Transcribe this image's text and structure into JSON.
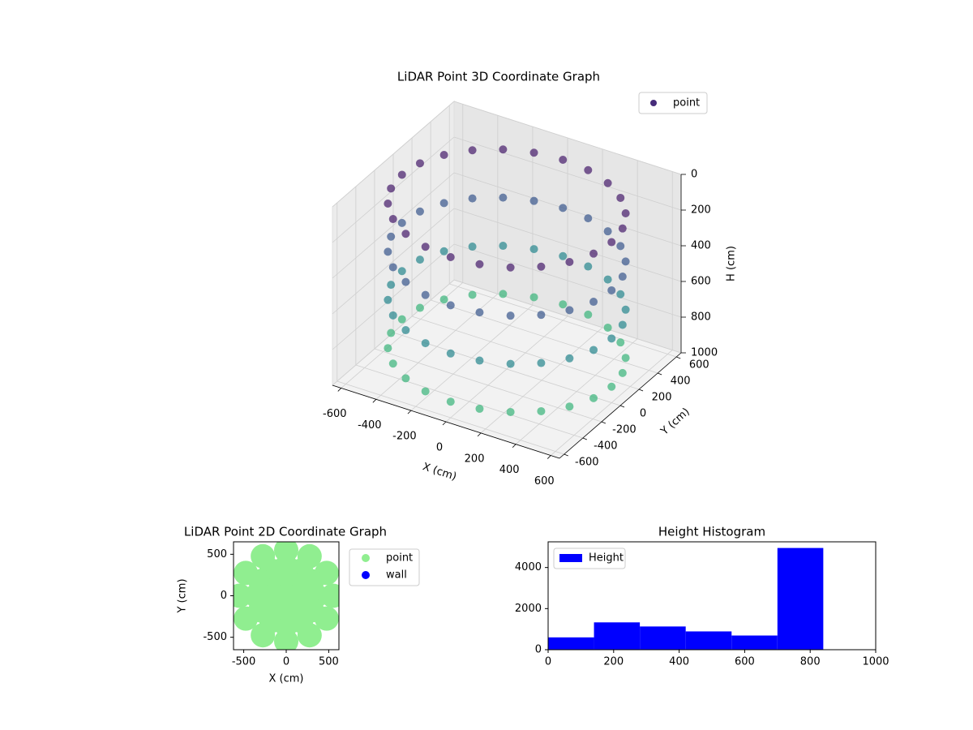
{
  "chart_data": [
    {
      "type": "scatter3d",
      "title": "LiDAR Point 3D Coordinate Graph",
      "xlabel": "X (cm)",
      "ylabel": "Y (cm)",
      "zlabel": "H (cm)",
      "xlim": [
        -650,
        650
      ],
      "ylim": [
        -650,
        650
      ],
      "zlim": [
        0,
        1000
      ],
      "xticks": [
        -600,
        -400,
        -200,
        0,
        200,
        400,
        600
      ],
      "yticks": [
        -600,
        -400,
        -200,
        0,
        200,
        400,
        600
      ],
      "zticks": [
        0,
        200,
        400,
        600,
        800,
        1000
      ],
      "grid": true,
      "legend": "upper right",
      "series": [
        {
          "name": "point",
          "color": "#472c7a",
          "colormap": "viridis",
          "x": [
            600,
            580,
            520,
            424,
            300,
            155,
            0,
            -155,
            -300,
            -424,
            -520,
            -580,
            -600,
            -580,
            -520,
            -424,
            -300,
            -155,
            0,
            155,
            300,
            424,
            520,
            580,
            600,
            580,
            520,
            424,
            300,
            155,
            0,
            -155,
            -300,
            -424,
            -520,
            -580,
            -600,
            -580,
            -520,
            -424,
            -300,
            -155,
            0,
            155,
            300,
            424,
            520,
            580,
            600,
            580,
            520,
            424,
            300,
            155,
            0,
            -155,
            -300,
            -424,
            -520,
            -580,
            -600,
            -580,
            -520,
            -424,
            -300,
            -155,
            0,
            155,
            300,
            424,
            520,
            580,
            600,
            580,
            520,
            424,
            300,
            155,
            0,
            -155,
            -300,
            -424,
            -520,
            -580,
            -600,
            -580,
            -520,
            -424,
            -300,
            -155,
            0,
            155,
            300,
            424,
            520,
            580
          ],
          "y": [
            0,
            155,
            300,
            424,
            520,
            580,
            600,
            580,
            520,
            424,
            300,
            155,
            0,
            -155,
            -300,
            -424,
            -520,
            -580,
            -600,
            -580,
            -520,
            -424,
            -300,
            -155,
            0,
            155,
            300,
            424,
            520,
            580,
            600,
            580,
            520,
            424,
            300,
            155,
            0,
            -155,
            -300,
            -424,
            -520,
            -580,
            -600,
            -580,
            -520,
            -424,
            -300,
            -155,
            0,
            155,
            300,
            424,
            520,
            580,
            600,
            580,
            520,
            424,
            300,
            155,
            0,
            -155,
            -300,
            -424,
            -520,
            -580,
            -600,
            -580,
            -520,
            -424,
            -300,
            -155,
            0,
            155,
            300,
            424,
            520,
            580,
            600,
            580,
            520,
            424,
            300,
            155,
            0,
            -155,
            -300,
            -424,
            -520,
            -580,
            -600,
            -580,
            -520,
            -424,
            -300,
            -155
          ],
          "z": [
            100,
            100,
            100,
            100,
            100,
            100,
            100,
            100,
            100,
            100,
            100,
            100,
            100,
            100,
            100,
            100,
            100,
            100,
            100,
            100,
            100,
            100,
            100,
            100,
            370,
            370,
            370,
            370,
            370,
            370,
            370,
            370,
            370,
            370,
            370,
            370,
            370,
            370,
            370,
            370,
            370,
            370,
            370,
            370,
            370,
            370,
            370,
            370,
            640,
            640,
            640,
            640,
            640,
            640,
            640,
            640,
            640,
            640,
            640,
            640,
            640,
            640,
            640,
            640,
            640,
            640,
            640,
            640,
            640,
            640,
            640,
            640,
            910,
            910,
            910,
            910,
            910,
            910,
            910,
            910,
            910,
            910,
            910,
            910,
            910,
            910,
            910,
            910,
            910,
            910,
            910,
            910,
            910,
            910,
            910,
            910
          ]
        }
      ]
    },
    {
      "type": "scatter",
      "title": "LiDAR Point 2D Coordinate Graph",
      "xlabel": "X (cm)",
      "ylabel": "Y (cm)",
      "xlim": [
        -620,
        620
      ],
      "ylim": [
        -650,
        650
      ],
      "xticks": [
        -500,
        0,
        500
      ],
      "yticks": [
        -500,
        0,
        500
      ],
      "legend": "outside right",
      "series": [
        {
          "name": "point",
          "color": "lightgreen",
          "x": [
            550,
            476,
            275,
            0,
            -275,
            -476,
            -550,
            -476,
            -275,
            0,
            275,
            476,
            350,
            303,
            175,
            0,
            -175,
            -303,
            -350,
            -303,
            -175,
            0,
            175,
            303,
            150,
            130,
            75,
            0,
            -75,
            -130,
            -150,
            -130,
            -75,
            0,
            75,
            130,
            0
          ],
          "y": [
            0,
            275,
            476,
            550,
            476,
            275,
            0,
            -275,
            -476,
            -550,
            -476,
            -275,
            0,
            175,
            303,
            350,
            303,
            175,
            0,
            -175,
            -303,
            -350,
            -303,
            -175,
            0,
            75,
            130,
            150,
            130,
            75,
            0,
            -75,
            -130,
            -150,
            -130,
            -75,
            0
          ]
        },
        {
          "name": "wall",
          "color": "blue",
          "x": [],
          "y": []
        }
      ]
    },
    {
      "type": "histogram",
      "title": "Height Histogram",
      "name": "Height",
      "color": "blue",
      "legend": "upper left",
      "bins": [
        0,
        140,
        280,
        420,
        560,
        700,
        840
      ],
      "values": [
        600,
        1330,
        1130,
        890,
        690,
        4950
      ],
      "xlim": [
        0,
        1000
      ],
      "ylim": [
        0,
        5250
      ],
      "xticks": [
        0,
        200,
        400,
        600,
        800,
        1000
      ],
      "yticks": [
        0,
        2000,
        4000
      ]
    }
  ]
}
